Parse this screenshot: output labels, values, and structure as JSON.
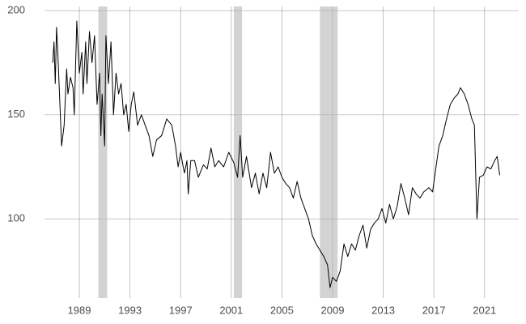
{
  "chart_data": {
    "type": "line",
    "x": [
      1986.9,
      1987.0,
      1987.1,
      1987.2,
      1987.3,
      1987.5,
      1987.6,
      1987.8,
      1988.0,
      1988.1,
      1988.3,
      1988.5,
      1988.6,
      1988.8,
      1989.0,
      1989.2,
      1989.3,
      1989.5,
      1989.6,
      1989.8,
      1990.0,
      1990.2,
      1990.4,
      1990.6,
      1990.7,
      1990.8,
      1991.0,
      1991.1,
      1991.3,
      1991.5,
      1991.7,
      1991.9,
      1992.1,
      1992.3,
      1992.5,
      1992.7,
      1992.9,
      1993.1,
      1993.3,
      1993.6,
      1993.9,
      1994.2,
      1994.5,
      1994.8,
      1995.1,
      1995.5,
      1995.9,
      1996.3,
      1996.6,
      1996.8,
      1997.0,
      1997.2,
      1997.3,
      1997.5,
      1997.6,
      1997.8,
      1998.1,
      1998.4,
      1998.8,
      1999.1,
      1999.4,
      1999.7,
      2000.0,
      2000.4,
      2000.8,
      2001.2,
      2001.5,
      2001.7,
      2001.9,
      2002.2,
      2002.6,
      2002.9,
      2003.2,
      2003.5,
      2003.8,
      2004.1,
      2004.4,
      2004.7,
      2005.0,
      2005.3,
      2005.6,
      2005.9,
      2006.2,
      2006.5,
      2006.8,
      2007.1,
      2007.4,
      2007.7,
      2008.0,
      2008.3,
      2008.6,
      2008.8,
      2009.0,
      2009.3,
      2009.6,
      2009.9,
      2010.2,
      2010.5,
      2010.8,
      2011.1,
      2011.4,
      2011.7,
      2012.0,
      2012.3,
      2012.6,
      2012.9,
      2013.2,
      2013.5,
      2013.8,
      2014.1,
      2014.4,
      2014.7,
      2015.0,
      2015.3,
      2015.6,
      2015.9,
      2016.2,
      2016.6,
      2016.9,
      2017.1,
      2017.4,
      2017.7,
      2018.0,
      2018.3,
      2018.6,
      2018.9,
      2019.1,
      2019.4,
      2019.7,
      2020.0,
      2020.2,
      2020.4,
      2020.6,
      2020.9,
      2021.2,
      2021.5,
      2021.8,
      2022.0,
      2022.2
    ],
    "values": [
      175,
      185,
      165,
      192,
      180,
      150,
      135,
      145,
      172,
      160,
      168,
      163,
      150,
      195,
      170,
      180,
      160,
      185,
      165,
      190,
      175,
      188,
      155,
      170,
      140,
      160,
      135,
      188,
      165,
      185,
      150,
      170,
      160,
      165,
      150,
      155,
      142,
      155,
      161,
      145,
      150,
      145,
      140,
      130,
      138,
      140,
      148,
      145,
      135,
      125,
      132,
      125,
      122,
      128,
      112,
      128,
      128,
      120,
      126,
      124,
      134,
      125,
      128,
      125,
      132,
      127,
      120,
      140,
      120,
      130,
      115,
      122,
      112,
      122,
      115,
      132,
      122,
      125,
      120,
      117,
      115,
      110,
      118,
      110,
      105,
      100,
      92,
      88,
      85,
      82,
      78,
      67,
      72,
      70,
      75,
      88,
      82,
      88,
      85,
      92,
      97,
      86,
      95,
      98,
      100,
      105,
      98,
      107,
      100,
      106,
      117,
      110,
      102,
      115,
      112,
      110,
      113,
      115,
      113,
      122,
      135,
      140,
      148,
      155,
      158,
      160,
      163,
      160,
      155,
      148,
      145,
      100,
      120,
      121,
      125,
      124,
      128,
      130,
      121
    ],
    "color": "#000000",
    "shaded_periods": [
      [
        1990.5,
        1991.2
      ],
      [
        2001.2,
        2001.85
      ],
      [
        2008.0,
        2009.4
      ]
    ],
    "shade_color": "#d3d3d3",
    "xlim": [
      1986.25,
      2023.7
    ],
    "xticks": [
      1989,
      1993,
      1997,
      2001,
      2005,
      2009,
      2013,
      2017,
      2021
    ],
    "ylim": [
      62,
      202
    ],
    "yticks": [
      100,
      150,
      200
    ],
    "grid": true
  }
}
